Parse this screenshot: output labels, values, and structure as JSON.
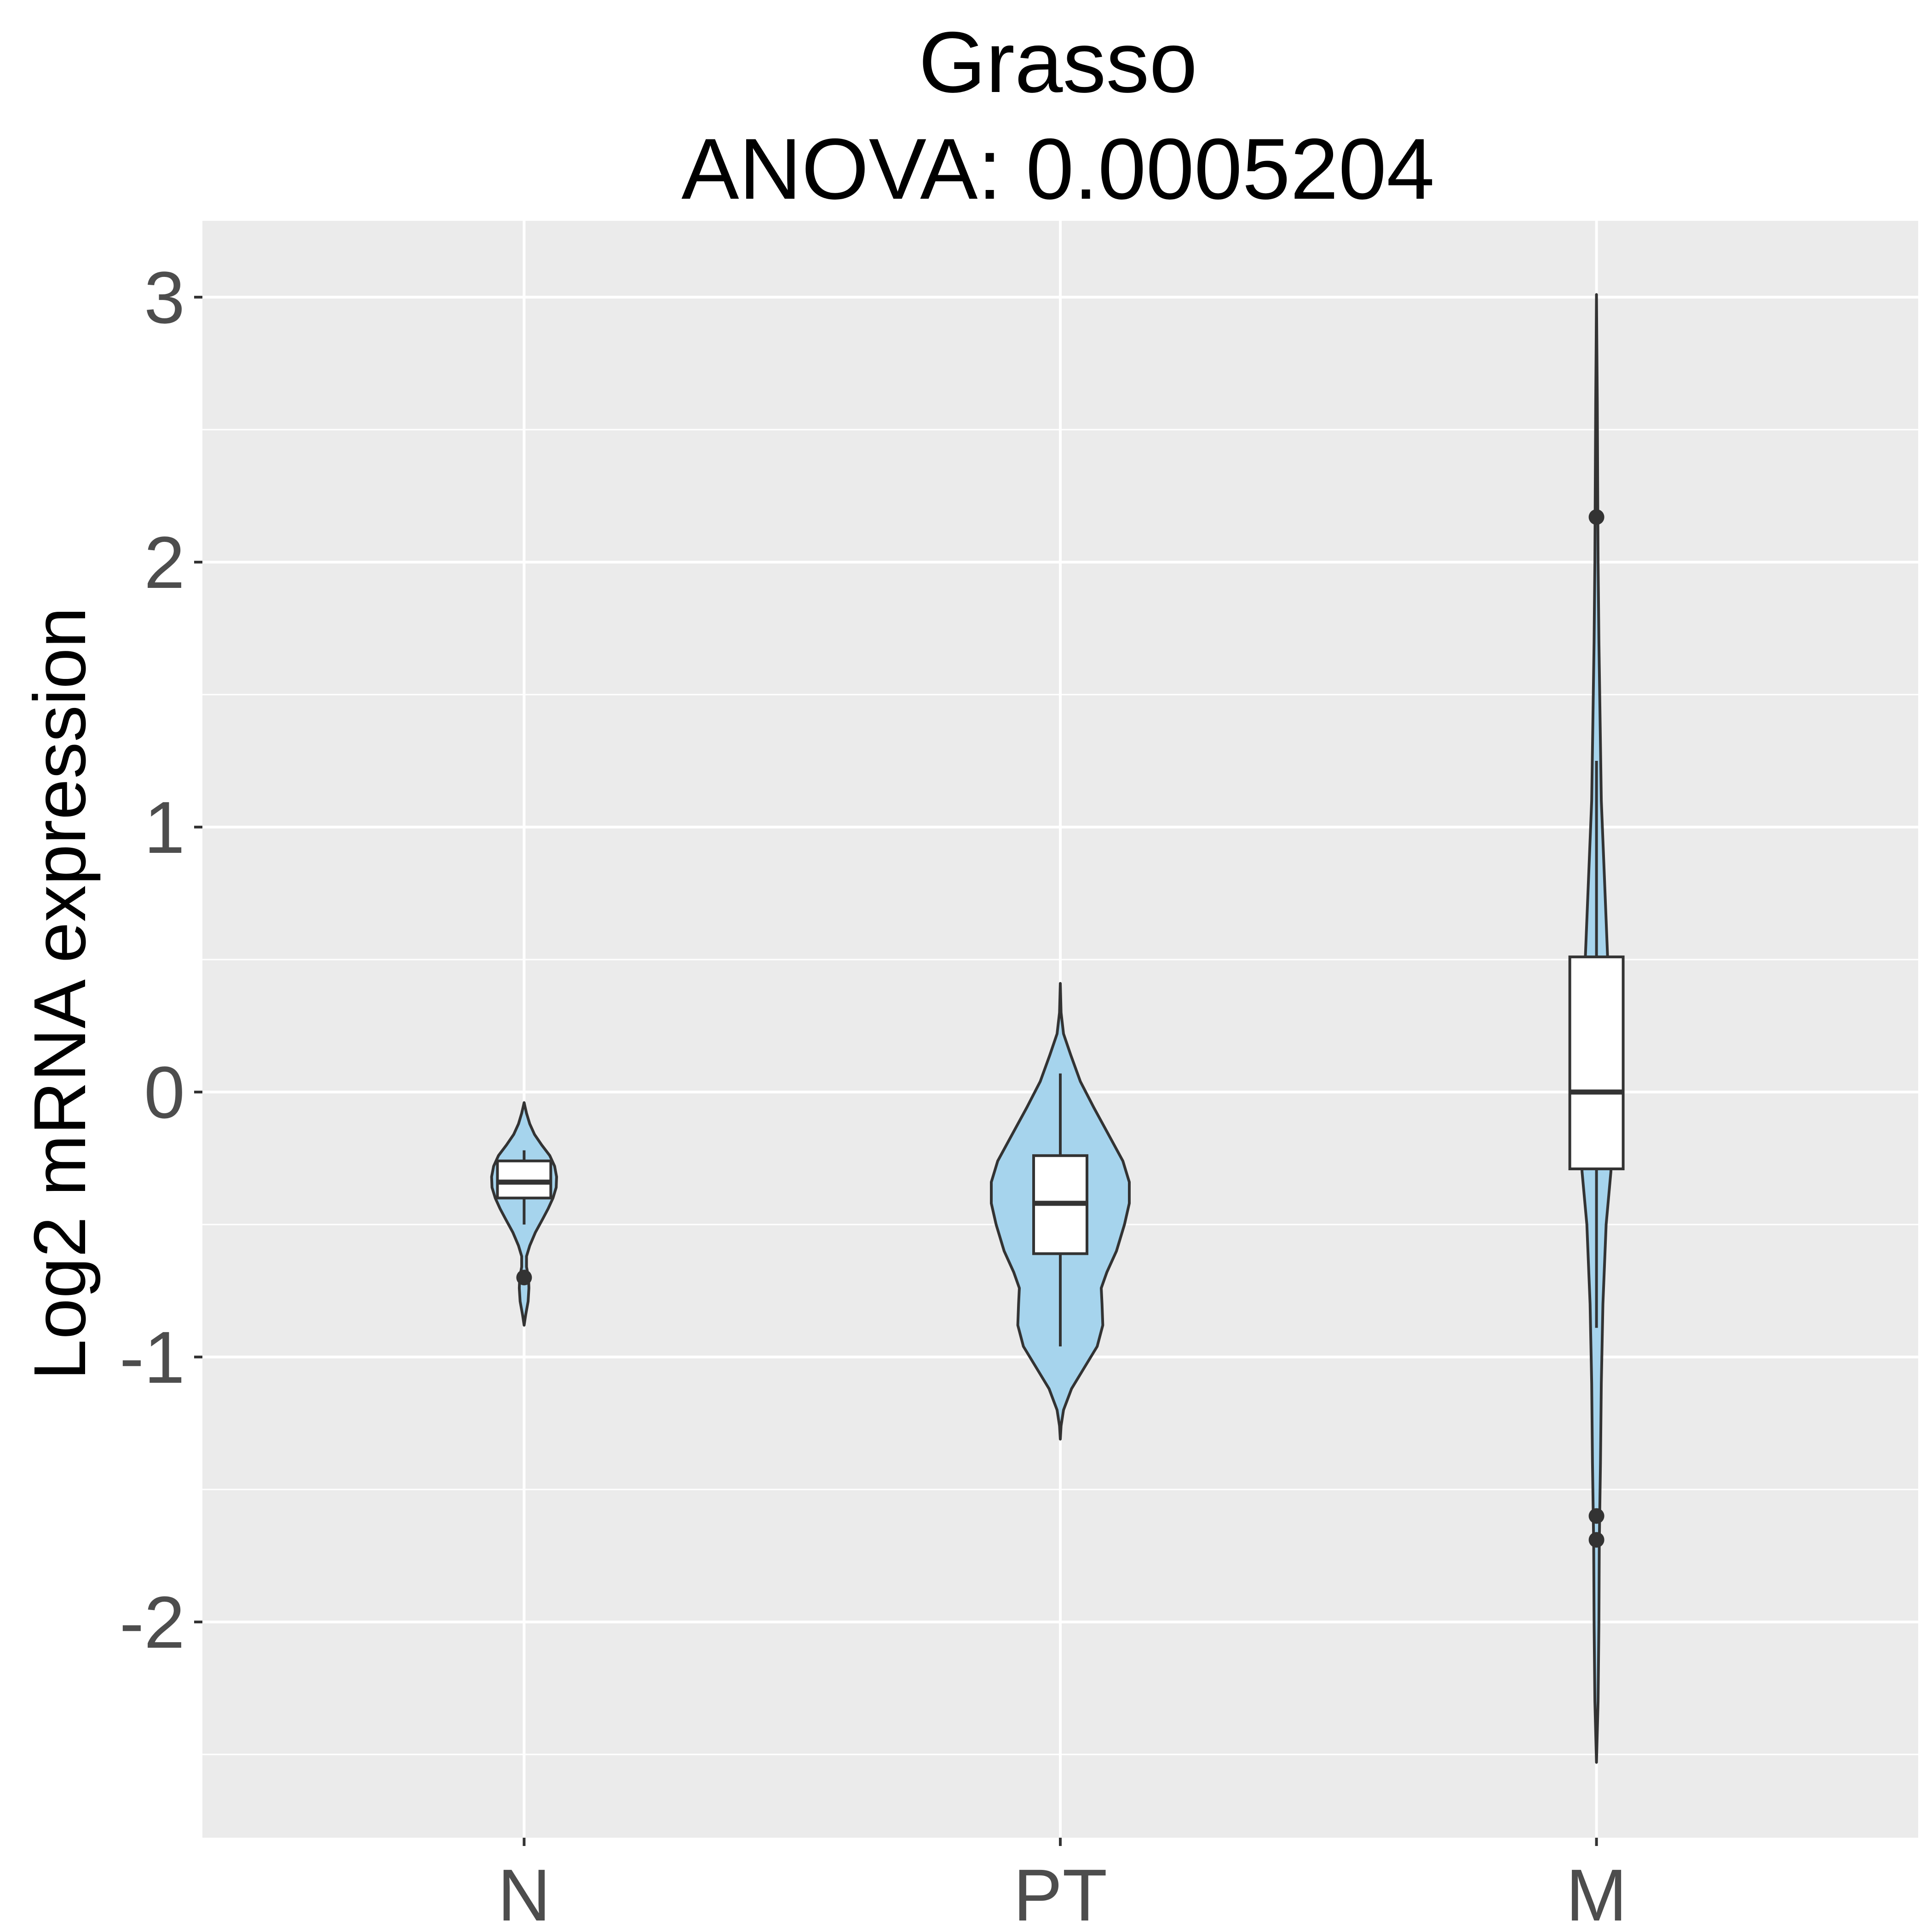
{
  "chart_data": {
    "type": "violin",
    "title": "Grasso",
    "subtitle": "ANOVA: 0.0005204",
    "xlabel": "",
    "ylabel": "Log2 mRNA expression",
    "categories": [
      "N",
      "PT",
      "M"
    ],
    "y_ticks": [
      -2,
      -1,
      0,
      1,
      2,
      3
    ],
    "y_tick_labels": [
      "-2",
      "-1",
      "0",
      "1",
      "2",
      "3"
    ],
    "ylim": [
      -2.75,
      3.3
    ],
    "grid": true,
    "groups": [
      {
        "category": "N",
        "violin_min": -0.88,
        "violin_max": -0.04,
        "density": [
          [
            -0.88,
            0.0
          ],
          [
            -0.84,
            0.02
          ],
          [
            -0.79,
            0.05
          ],
          [
            -0.74,
            0.06
          ],
          [
            -0.7,
            0.055
          ],
          [
            -0.66,
            0.03
          ],
          [
            -0.62,
            0.03
          ],
          [
            -0.58,
            0.07
          ],
          [
            -0.53,
            0.14
          ],
          [
            -0.48,
            0.23
          ],
          [
            -0.44,
            0.3
          ],
          [
            -0.4,
            0.36
          ],
          [
            -0.36,
            0.4
          ],
          [
            -0.32,
            0.405
          ],
          [
            -0.28,
            0.38
          ],
          [
            -0.24,
            0.32
          ],
          [
            -0.2,
            0.22
          ],
          [
            -0.16,
            0.13
          ],
          [
            -0.12,
            0.07
          ],
          [
            -0.08,
            0.03
          ],
          [
            -0.04,
            0.0
          ]
        ],
        "box_q1": -0.4,
        "box_median": -0.34,
        "box_q3": -0.26,
        "whisker_low": -0.5,
        "whisker_high": -0.22,
        "outliers": [
          -0.7
        ]
      },
      {
        "category": "PT",
        "violin_min": -1.31,
        "violin_max": 0.41,
        "density": [
          [
            -1.31,
            0.0
          ],
          [
            -1.26,
            0.01
          ],
          [
            -1.2,
            0.04
          ],
          [
            -1.12,
            0.14
          ],
          [
            -1.04,
            0.3
          ],
          [
            -0.96,
            0.46
          ],
          [
            -0.88,
            0.53
          ],
          [
            -0.8,
            0.52
          ],
          [
            -0.74,
            0.51
          ],
          [
            -0.68,
            0.58
          ],
          [
            -0.6,
            0.7
          ],
          [
            -0.5,
            0.8
          ],
          [
            -0.42,
            0.86
          ],
          [
            -0.34,
            0.86
          ],
          [
            -0.26,
            0.78
          ],
          [
            -0.16,
            0.6
          ],
          [
            -0.06,
            0.42
          ],
          [
            0.04,
            0.25
          ],
          [
            0.14,
            0.13
          ],
          [
            0.22,
            0.04
          ],
          [
            0.3,
            0.01
          ],
          [
            0.41,
            0.0
          ]
        ],
        "box_q1": -0.61,
        "box_median": -0.42,
        "box_q3": -0.24,
        "whisker_low": -0.96,
        "whisker_high": 0.07,
        "outliers": []
      },
      {
        "category": "M",
        "violin_min": -2.53,
        "violin_max": 3.01,
        "density": [
          [
            -2.53,
            0.0
          ],
          [
            -2.3,
            0.02
          ],
          [
            -2.0,
            0.03
          ],
          [
            -1.7,
            0.035
          ],
          [
            -1.4,
            0.05
          ],
          [
            -1.1,
            0.06
          ],
          [
            -0.8,
            0.08
          ],
          [
            -0.5,
            0.12
          ],
          [
            -0.3,
            0.18
          ],
          [
            -0.1,
            0.2
          ],
          [
            0.1,
            0.2
          ],
          [
            0.3,
            0.17
          ],
          [
            0.5,
            0.14
          ],
          [
            0.8,
            0.1
          ],
          [
            1.1,
            0.06
          ],
          [
            1.4,
            0.045
          ],
          [
            1.7,
            0.03
          ],
          [
            2.0,
            0.02
          ],
          [
            2.3,
            0.015
          ],
          [
            2.6,
            0.01
          ],
          [
            2.8,
            0.005
          ],
          [
            3.01,
            0.0
          ]
        ],
        "box_q1": -0.29,
        "box_median": 0.0,
        "box_q3": 0.51,
        "whisker_low": -0.89,
        "whisker_high": 1.25,
        "outliers": [
          2.17,
          -1.6,
          -1.69
        ]
      }
    ],
    "colors": {
      "panel_background": "#ebebeb",
      "grid_line": "#ffffff",
      "violin_fill": "#a6d4ed",
      "outline": "#333333",
      "box_fill": "#ffffff",
      "tick_mark": "#333333"
    }
  }
}
